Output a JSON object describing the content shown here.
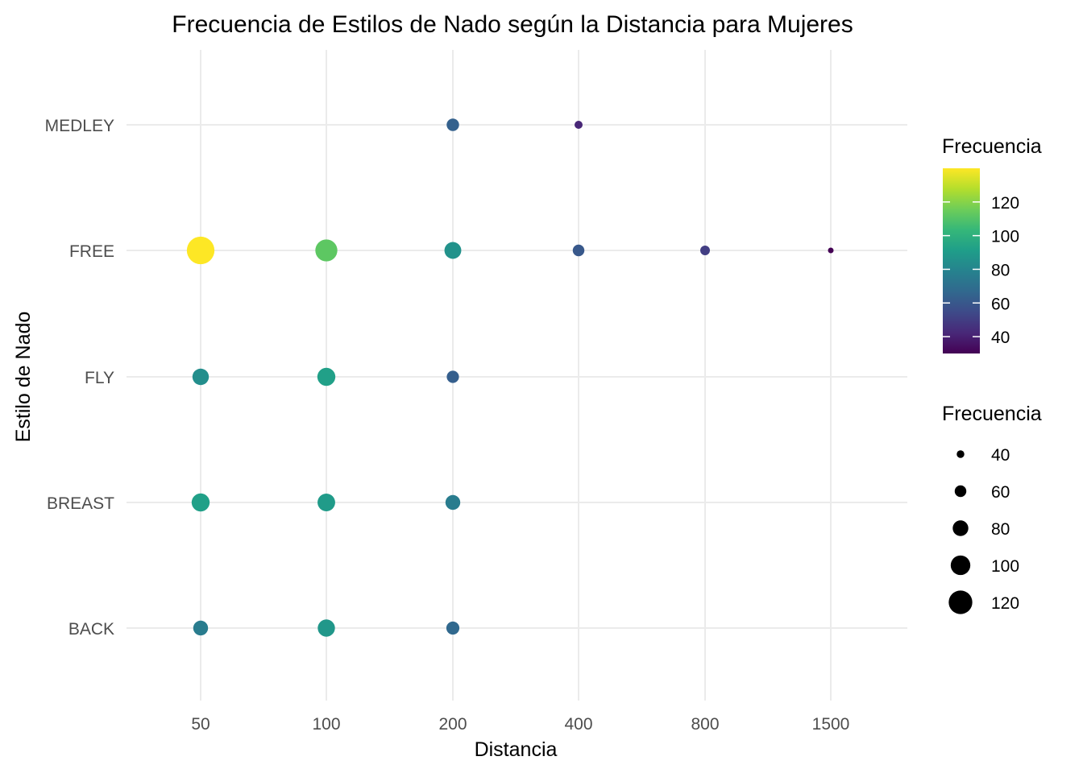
{
  "chart_data": {
    "type": "scatter",
    "title": "Frecuencia de Estilos de Nado según la Distancia para Mujeres",
    "xlabel": "Distancia",
    "ylabel": "Estilo de Nado",
    "x_categories": [
      "50",
      "100",
      "200",
      "400",
      "800",
      "1500"
    ],
    "y_categories": [
      "BACK",
      "BREAST",
      "FLY",
      "FREE",
      "MEDLEY"
    ],
    "points": [
      {
        "x": "50",
        "y": "BACK",
        "value": 76
      },
      {
        "x": "100",
        "y": "BACK",
        "value": 88
      },
      {
        "x": "200",
        "y": "BACK",
        "value": 67
      },
      {
        "x": "50",
        "y": "BREAST",
        "value": 92
      },
      {
        "x": "100",
        "y": "BREAST",
        "value": 90
      },
      {
        "x": "200",
        "y": "BREAST",
        "value": 76
      },
      {
        "x": "50",
        "y": "FLY",
        "value": 84
      },
      {
        "x": "100",
        "y": "FLY",
        "value": 92
      },
      {
        "x": "200",
        "y": "FLY",
        "value": 63
      },
      {
        "x": "50",
        "y": "FREE",
        "value": 140
      },
      {
        "x": "100",
        "y": "FREE",
        "value": 112
      },
      {
        "x": "200",
        "y": "FREE",
        "value": 86
      },
      {
        "x": "400",
        "y": "FREE",
        "value": 60
      },
      {
        "x": "800",
        "y": "FREE",
        "value": 50
      },
      {
        "x": "1500",
        "y": "FREE",
        "value": 30
      },
      {
        "x": "200",
        "y": "MEDLEY",
        "value": 64
      },
      {
        "x": "400",
        "y": "MEDLEY",
        "value": 42
      }
    ],
    "color_legend": {
      "title": "Frecuencia",
      "ticks": [
        "40",
        "60",
        "80",
        "100",
        "120"
      ],
      "range": [
        30,
        140
      ],
      "palette": [
        "#440154",
        "#482878",
        "#3E4A89",
        "#31688E",
        "#26828E",
        "#1F9E89",
        "#35B779",
        "#6DCD59",
        "#B4DE2C",
        "#FDE725"
      ]
    },
    "size_legend": {
      "title": "Frecuencia",
      "ticks": [
        "40",
        "60",
        "80",
        "100",
        "120"
      ]
    },
    "grid": true,
    "legend_position": "right"
  }
}
